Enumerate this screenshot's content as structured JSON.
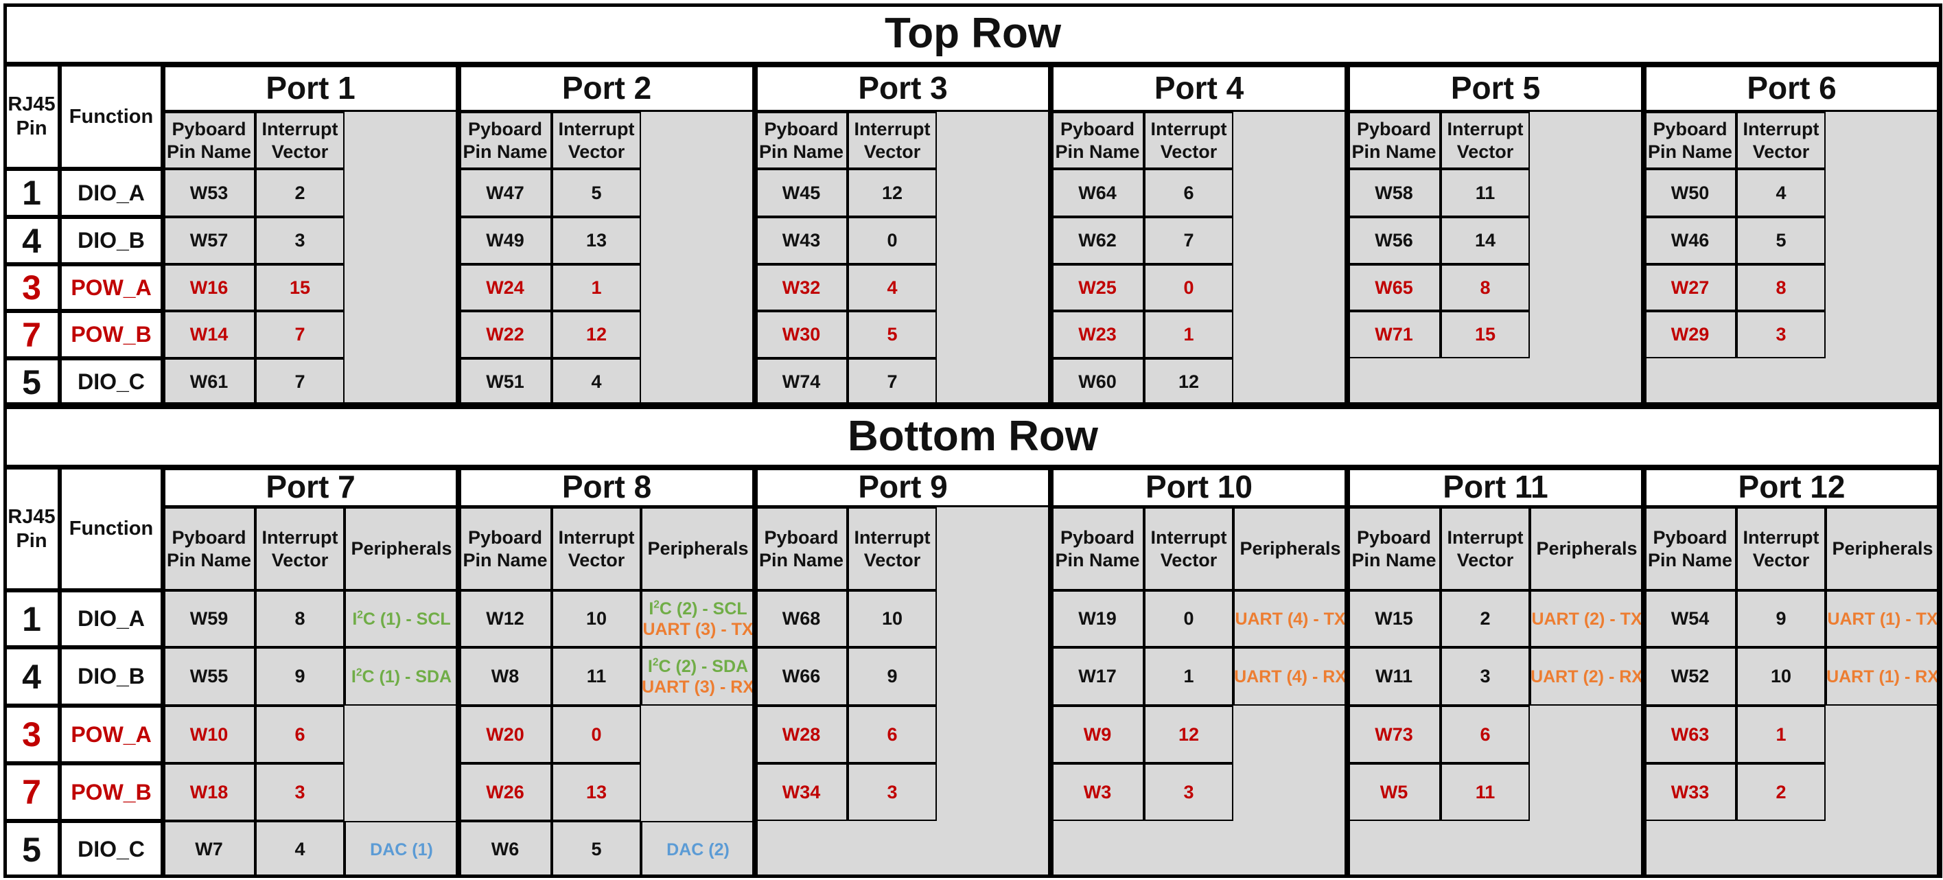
{
  "colors": {
    "text": "#111111",
    "power_red": "#c00000",
    "i2c_green": "#70ad47",
    "uart_orange": "#ed7d31",
    "dac_blue": "#5b9bd5",
    "unused_gray": "#d9d9d9"
  },
  "headers": {
    "rj45_pin": "RJ45 Pin",
    "function": "Function",
    "pyboard_pin_name": "Pyboard Pin Name",
    "interrupt_vector": "Interrupt Vector",
    "peripherals": "Peripherals"
  },
  "rows": [
    {
      "pin": "1",
      "function": "DIO_A",
      "power": false
    },
    {
      "pin": "4",
      "function": "DIO_B",
      "power": false
    },
    {
      "pin": "3",
      "function": "POW_A",
      "power": true
    },
    {
      "pin": "7",
      "function": "POW_B",
      "power": true
    },
    {
      "pin": "5",
      "function": "DIO_C",
      "power": false
    }
  ],
  "top_section": {
    "title": "Top Row",
    "ports": [
      {
        "name": "Port 1",
        "cells": [
          [
            "W53",
            "2"
          ],
          [
            "W57",
            "3"
          ],
          [
            "W16",
            "15"
          ],
          [
            "W14",
            "7"
          ],
          [
            "W61",
            "7"
          ]
        ]
      },
      {
        "name": "Port 2",
        "cells": [
          [
            "W47",
            "5"
          ],
          [
            "W49",
            "13"
          ],
          [
            "W24",
            "1"
          ],
          [
            "W22",
            "12"
          ],
          [
            "W51",
            "4"
          ]
        ]
      },
      {
        "name": "Port 3",
        "cells": [
          [
            "W45",
            "12"
          ],
          [
            "W43",
            "0"
          ],
          [
            "W32",
            "4"
          ],
          [
            "W30",
            "5"
          ],
          [
            "W74",
            "7"
          ]
        ]
      },
      {
        "name": "Port 4",
        "cells": [
          [
            "W64",
            "6"
          ],
          [
            "W62",
            "7"
          ],
          [
            "W25",
            "0"
          ],
          [
            "W23",
            "1"
          ],
          [
            "W60",
            "12"
          ]
        ]
      },
      {
        "name": "Port 5",
        "cells": [
          [
            "W58",
            "11"
          ],
          [
            "W56",
            "14"
          ],
          [
            "W65",
            "8"
          ],
          [
            "W71",
            "15"
          ]
        ]
      },
      {
        "name": "Port 6",
        "cells": [
          [
            "W50",
            "4"
          ],
          [
            "W46",
            "5"
          ],
          [
            "W27",
            "8"
          ],
          [
            "W29",
            "3"
          ]
        ]
      }
    ]
  },
  "bottom_section": {
    "title": "Bottom Row",
    "ports": [
      {
        "name": "Port 7",
        "cells": [
          [
            "W59",
            "8"
          ],
          [
            "W55",
            "9"
          ],
          [
            "W10",
            "6"
          ],
          [
            "W18",
            "3"
          ],
          [
            "W7",
            "4"
          ]
        ],
        "peripherals": [
          [
            {
              "color": "green",
              "pre": "I",
              "sup": "2",
              "post": "C (1) - SCL"
            }
          ],
          [
            {
              "color": "green",
              "pre": "I",
              "sup": "2",
              "post": "C (1) - SDA"
            }
          ],
          null,
          null,
          [
            {
              "color": "blue",
              "text": "DAC (1)"
            }
          ]
        ]
      },
      {
        "name": "Port 8",
        "cells": [
          [
            "W12",
            "10"
          ],
          [
            "W8",
            "11"
          ],
          [
            "W20",
            "0"
          ],
          [
            "W26",
            "13"
          ],
          [
            "W6",
            "5"
          ]
        ],
        "peripherals": [
          [
            {
              "color": "green",
              "pre": "I",
              "sup": "2",
              "post": "C (2) - SCL"
            },
            {
              "color": "orange",
              "text": "UART (3) - TX"
            }
          ],
          [
            {
              "color": "green",
              "pre": "I",
              "sup": "2",
              "post": "C (2) - SDA"
            },
            {
              "color": "orange",
              "text": "UART (3) - RX"
            }
          ],
          null,
          null,
          [
            {
              "color": "blue",
              "text": "DAC (2)"
            }
          ]
        ]
      },
      {
        "name": "Port 9",
        "cells": [
          [
            "W68",
            "10"
          ],
          [
            "W66",
            "9"
          ],
          [
            "W28",
            "6"
          ],
          [
            "W34",
            "3"
          ]
        ]
      },
      {
        "name": "Port 10",
        "cells": [
          [
            "W19",
            "0"
          ],
          [
            "W17",
            "1"
          ],
          [
            "W9",
            "12"
          ],
          [
            "W3",
            "3"
          ]
        ],
        "peripherals": [
          [
            {
              "color": "orange",
              "text": "UART (4) - TX"
            }
          ],
          [
            {
              "color": "orange",
              "text": "UART (4) - RX"
            }
          ]
        ]
      },
      {
        "name": "Port 11",
        "cells": [
          [
            "W15",
            "2"
          ],
          [
            "W11",
            "3"
          ],
          [
            "W73",
            "6"
          ],
          [
            "W5",
            "11"
          ]
        ],
        "peripherals": [
          [
            {
              "color": "orange",
              "text": "UART (2) - TX"
            }
          ],
          [
            {
              "color": "orange",
              "text": "UART (2) - RX"
            }
          ]
        ]
      },
      {
        "name": "Port 12",
        "cells": [
          [
            "W54",
            "9"
          ],
          [
            "W52",
            "10"
          ],
          [
            "W63",
            "1"
          ],
          [
            "W33",
            "2"
          ]
        ],
        "peripherals": [
          [
            {
              "color": "orange",
              "text": "UART (1) - TX"
            }
          ],
          [
            {
              "color": "orange",
              "text": "UART (1) - RX"
            }
          ]
        ]
      }
    ]
  }
}
